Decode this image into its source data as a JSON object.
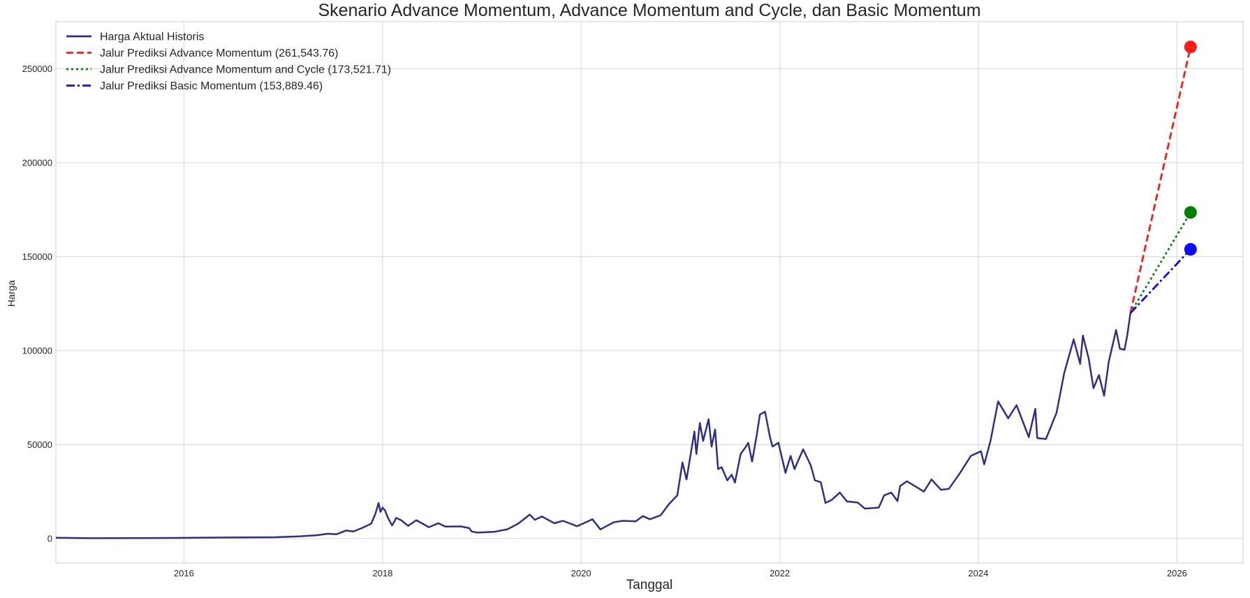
{
  "chart_data": {
    "type": "line",
    "title": "Skenario Advance Momentum, Advance Momentum and Cycle, dan Basic Momentum",
    "xlabel": "Tanggal",
    "ylabel": "Harga",
    "xlim": [
      "2014-09-17",
      "2026-09-01"
    ],
    "ylim": [
      -13000,
      275000
    ],
    "x_ticks": [
      "2016",
      "2018",
      "2020",
      "2022",
      "2024",
      "2026"
    ],
    "y_ticks": [
      "0",
      "50000",
      "100000",
      "150000",
      "200000",
      "250000"
    ],
    "grid": true,
    "legend_position": "upper-left",
    "series": [
      {
        "name": "Harga Aktual Historis",
        "color": "#2e2e8b",
        "style": "solid",
        "points": [
          [
            "2014-09-17",
            460
          ],
          [
            "2015-01-14",
            215
          ],
          [
            "2015-08-01",
            260
          ],
          [
            "2016-01-01",
            430
          ],
          [
            "2016-06-01",
            600
          ],
          [
            "2016-12-01",
            750
          ],
          [
            "2017-03-01",
            1200
          ],
          [
            "2017-05-01",
            1800
          ],
          [
            "2017-06-15",
            2600
          ],
          [
            "2017-07-15",
            2300
          ],
          [
            "2017-08-20",
            4300
          ],
          [
            "2017-09-15",
            3800
          ],
          [
            "2017-10-20",
            5800
          ],
          [
            "2017-11-20",
            8000
          ],
          [
            "2017-12-05",
            13000
          ],
          [
            "2017-12-17",
            19000
          ],
          [
            "2017-12-24",
            14200
          ],
          [
            "2018-01-01",
            16500
          ],
          [
            "2018-01-10",
            15000
          ],
          [
            "2018-01-20",
            11200
          ],
          [
            "2018-02-05",
            7000
          ],
          [
            "2018-02-20",
            11000
          ],
          [
            "2018-03-10",
            9800
          ],
          [
            "2018-04-05",
            6800
          ],
          [
            "2018-05-05",
            9800
          ],
          [
            "2018-06-20",
            6100
          ],
          [
            "2018-07-25",
            8200
          ],
          [
            "2018-08-20",
            6400
          ],
          [
            "2018-10-15",
            6500
          ],
          [
            "2018-11-15",
            5600
          ],
          [
            "2018-11-25",
            3800
          ],
          [
            "2018-12-15",
            3200
          ],
          [
            "2019-02-15",
            3600
          ],
          [
            "2019-04-05",
            5000
          ],
          [
            "2019-05-15",
            8000
          ],
          [
            "2019-06-26",
            12800
          ],
          [
            "2019-07-15",
            10000
          ],
          [
            "2019-08-10",
            11800
          ],
          [
            "2019-09-25",
            8200
          ],
          [
            "2019-10-26",
            9500
          ],
          [
            "2019-12-18",
            6600
          ],
          [
            "2020-02-12",
            10300
          ],
          [
            "2020-03-12",
            4900
          ],
          [
            "2020-04-30",
            8700
          ],
          [
            "2020-06-01",
            9500
          ],
          [
            "2020-07-20",
            9200
          ],
          [
            "2020-08-15",
            12000
          ],
          [
            "2020-09-10",
            10300
          ],
          [
            "2020-10-20",
            12500
          ],
          [
            "2020-11-20",
            18500
          ],
          [
            "2020-12-20",
            23000
          ],
          [
            "2021-01-08",
            40500
          ],
          [
            "2021-01-23",
            31500
          ],
          [
            "2021-02-21",
            57000
          ],
          [
            "2021-02-28",
            45000
          ],
          [
            "2021-03-13",
            61500
          ],
          [
            "2021-03-25",
            52000
          ],
          [
            "2021-04-14",
            63500
          ],
          [
            "2021-04-25",
            49000
          ],
          [
            "2021-05-08",
            58000
          ],
          [
            "2021-05-19",
            37000
          ],
          [
            "2021-06-01",
            38000
          ],
          [
            "2021-06-22",
            31000
          ],
          [
            "2021-07-08",
            34000
          ],
          [
            "2021-07-20",
            29800
          ],
          [
            "2021-08-10",
            45000
          ],
          [
            "2021-08-25",
            48000
          ],
          [
            "2021-09-07",
            51000
          ],
          [
            "2021-09-21",
            41000
          ],
          [
            "2021-10-08",
            55000
          ],
          [
            "2021-10-20",
            66000
          ],
          [
            "2021-11-08",
            67500
          ],
          [
            "2021-11-26",
            54000
          ],
          [
            "2021-12-05",
            49000
          ],
          [
            "2021-12-27",
            51000
          ],
          [
            "2022-01-22",
            35000
          ],
          [
            "2022-02-10",
            44000
          ],
          [
            "2022-02-24",
            37000
          ],
          [
            "2022-03-28",
            47500
          ],
          [
            "2022-04-25",
            39000
          ],
          [
            "2022-05-10",
            31000
          ],
          [
            "2022-06-01",
            30000
          ],
          [
            "2022-06-18",
            19000
          ],
          [
            "2022-07-10",
            20500
          ],
          [
            "2022-08-10",
            24500
          ],
          [
            "2022-09-05",
            19800
          ],
          [
            "2022-10-15",
            19200
          ],
          [
            "2022-11-10",
            16000
          ],
          [
            "2022-12-31",
            16500
          ],
          [
            "2023-01-20",
            23000
          ],
          [
            "2023-02-15",
            24500
          ],
          [
            "2023-03-10",
            20000
          ],
          [
            "2023-03-20",
            28000
          ],
          [
            "2023-04-14",
            30500
          ],
          [
            "2023-06-15",
            25000
          ],
          [
            "2023-07-13",
            31500
          ],
          [
            "2023-08-17",
            26000
          ],
          [
            "2023-09-15",
            26500
          ],
          [
            "2023-10-24",
            34500
          ],
          [
            "2023-12-05",
            44000
          ],
          [
            "2024-01-11",
            46500
          ],
          [
            "2024-01-23",
            39500
          ],
          [
            "2024-02-15",
            52000
          ],
          [
            "2024-03-14",
            73000
          ],
          [
            "2024-04-20",
            64000
          ],
          [
            "2024-05-21",
            71000
          ],
          [
            "2024-07-05",
            54000
          ],
          [
            "2024-07-29",
            69000
          ],
          [
            "2024-08-05",
            53500
          ],
          [
            "2024-09-06",
            53000
          ],
          [
            "2024-10-15",
            67000
          ],
          [
            "2024-11-12",
            88000
          ],
          [
            "2024-12-17",
            106000
          ],
          [
            "2025-01-10",
            93000
          ],
          [
            "2025-01-20",
            108000
          ],
          [
            "2025-02-10",
            96000
          ],
          [
            "2025-02-28",
            80000
          ],
          [
            "2025-03-20",
            87000
          ],
          [
            "2025-04-08",
            76000
          ],
          [
            "2025-04-25",
            94000
          ],
          [
            "2025-05-22",
            111000
          ],
          [
            "2025-06-05",
            101000
          ],
          [
            "2025-06-22",
            100500
          ],
          [
            "2025-07-02",
            108000
          ],
          [
            "2025-07-14",
            120000
          ]
        ]
      },
      {
        "name": "Jalur Prediksi Advance Momentum (261,543.76)",
        "color": "#ff1a1a",
        "style": "dashed",
        "points": [
          [
            "2025-07-14",
            120000
          ],
          [
            "2026-02-20",
            261543.76
          ]
        ],
        "endpoint": 261543.76
      },
      {
        "name": "Jalur Prediksi Advance Momentum and Cycle (173,521.71)",
        "color": "#008000",
        "style": "dotted",
        "points": [
          [
            "2025-07-14",
            120000
          ],
          [
            "2026-02-20",
            173521.71
          ]
        ],
        "endpoint": 173521.71
      },
      {
        "name": "Jalur Prediksi Basic Momentum (153,889.46)",
        "color": "#0a0aff",
        "style": "dashdot",
        "points": [
          [
            "2025-07-14",
            120000
          ],
          [
            "2026-02-20",
            153889.46
          ]
        ],
        "endpoint": 153889.46
      }
    ]
  }
}
